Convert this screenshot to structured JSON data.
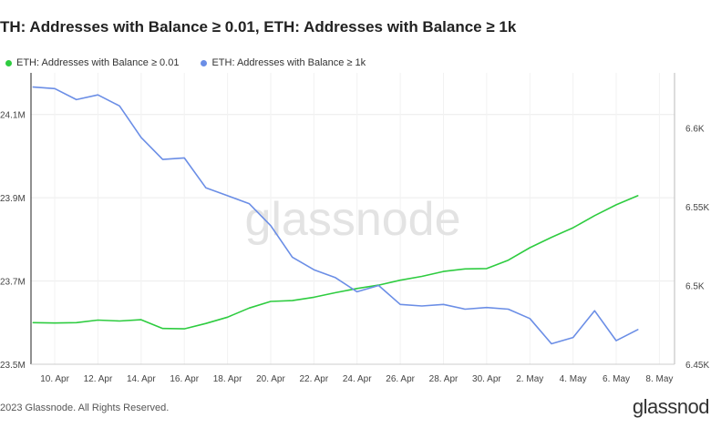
{
  "header": {
    "title": "TH: Addresses with Balance ≥ 0.01, ETH: Addresses with Balance ≥ 1k"
  },
  "chart_data": {
    "type": "line",
    "title": "TH: Addresses with Balance ≥ 0.01, ETH: Addresses with Balance ≥ 1k",
    "watermark": "glassnode",
    "legend_position": "top-left",
    "grid": true,
    "x_tick_labels": [
      "10. Apr",
      "12. Apr",
      "14. Apr",
      "16. Apr",
      "18. Apr",
      "20. Apr",
      "22. Apr",
      "24. Apr",
      "26. Apr",
      "28. Apr",
      "30. Apr",
      "2. May",
      "4. May",
      "6. May",
      "8. May"
    ],
    "x_domain": [
      8.9,
      38.7
    ],
    "x_ticks": [
      10,
      12,
      14,
      16,
      18,
      20,
      22,
      24,
      26,
      28,
      30,
      32,
      34,
      36,
      38
    ],
    "y_left": {
      "ticks": [
        23.5,
        23.7,
        23.9,
        24.1
      ],
      "labels": [
        "23.5M",
        "23.7M",
        "23.9M",
        "24.1M"
      ],
      "range": [
        23.5,
        24.2
      ]
    },
    "y_right": {
      "ticks": [
        6.45,
        6.5,
        6.55,
        6.6
      ],
      "labels": [
        "6.45K",
        "6.5K",
        "6.55K",
        "6.6K"
      ],
      "range": [
        6.45,
        6.635
      ]
    },
    "x": [
      9,
      10,
      11,
      12,
      13,
      14,
      15,
      16,
      17,
      18,
      19,
      20,
      21,
      22,
      23,
      24,
      25,
      26,
      27,
      28,
      29,
      30,
      31,
      32,
      33,
      34,
      35,
      36,
      37
    ],
    "series": [
      {
        "name": "ETH: Addresses with Balance ≥ 0.01",
        "color": "#2ecc40",
        "axis": "left",
        "values": [
          23.6,
          23.599,
          23.6,
          23.606,
          23.604,
          23.607,
          23.586,
          23.585,
          23.598,
          23.613,
          23.635,
          23.651,
          23.653,
          23.661,
          23.672,
          23.682,
          23.69,
          23.702,
          23.711,
          23.723,
          23.729,
          23.73,
          23.75,
          23.78,
          23.805,
          23.828,
          23.857,
          23.883,
          23.905
        ]
      },
      {
        "name": "ETH: Addresses with Balance ≥ 1k",
        "color": "#6b8ee6",
        "axis": "right",
        "values": [
          6.626,
          6.625,
          6.618,
          6.621,
          6.614,
          6.594,
          6.58,
          6.581,
          6.562,
          6.557,
          6.552,
          6.538,
          6.518,
          6.51,
          6.505,
          6.496,
          6.5,
          6.488,
          6.487,
          6.488,
          6.485,
          6.486,
          6.485,
          6.479,
          6.463,
          6.467,
          6.484,
          6.465,
          6.472
        ]
      }
    ]
  },
  "footer": {
    "copyright": "2023 Glassnode. All Rights Reserved.",
    "brand": "glassnod"
  }
}
